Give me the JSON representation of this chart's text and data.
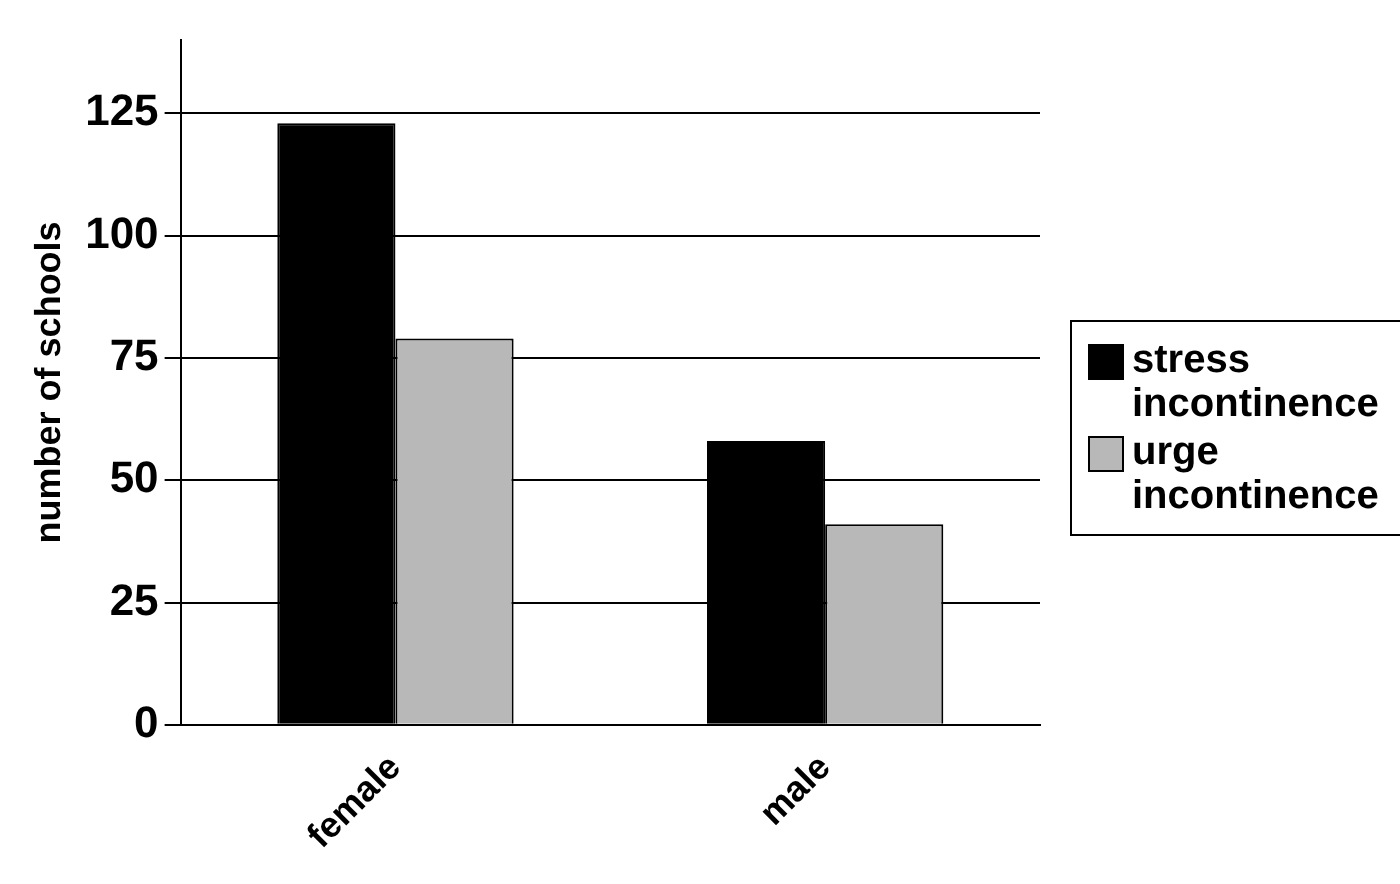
{
  "chart_data": {
    "type": "bar",
    "ylabel": "number of schools",
    "categories": [
      "female",
      "male"
    ],
    "series": [
      {
        "name": "stress incontinence",
        "color": "#000000",
        "values": [
          123,
          58
        ]
      },
      {
        "name": "urge incontinence",
        "color": "#b8b8b8",
        "values": [
          79,
          41
        ]
      }
    ],
    "ylim": [
      0,
      140
    ],
    "yticks": [
      0,
      25,
      50,
      75,
      100,
      125
    ],
    "grid": "y",
    "legend": "right"
  }
}
